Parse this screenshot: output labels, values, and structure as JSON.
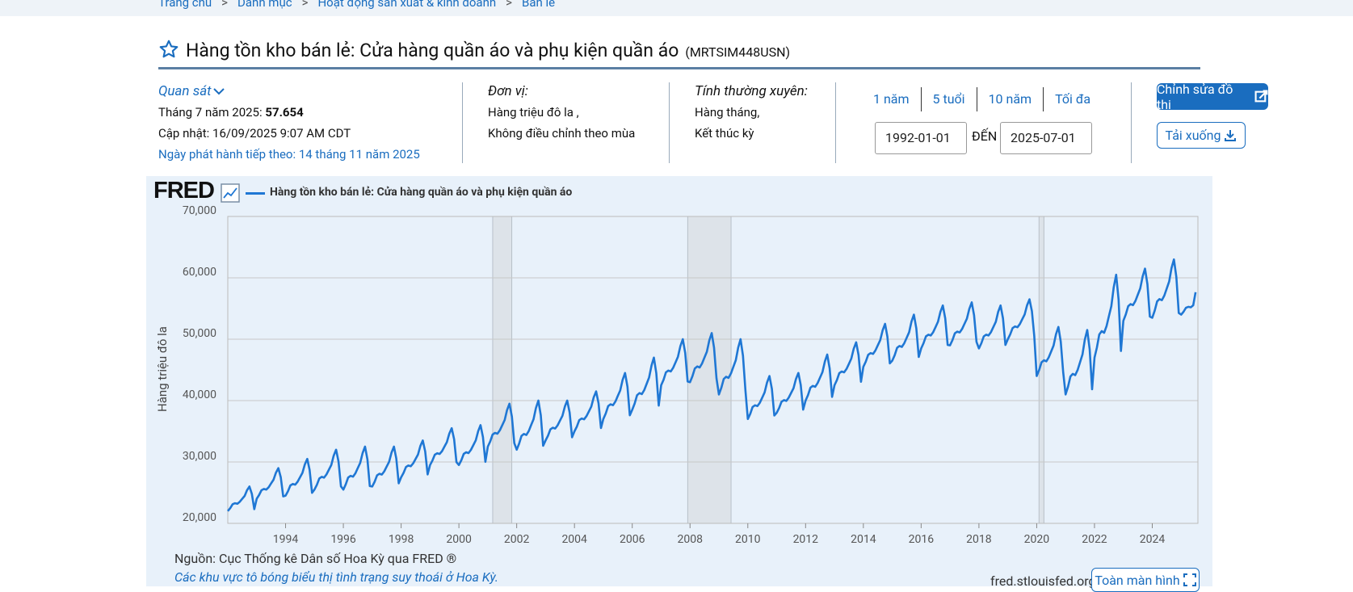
{
  "breadcrumb": [
    {
      "label": "Trang chủ"
    },
    {
      "label": "Danh mục"
    },
    {
      "label": "Hoạt động sản xuất & kinh doanh"
    },
    {
      "label": "Bán lẻ"
    }
  ],
  "breadcrumb_sep": ">",
  "title": "Hàng tồn kho bán lẻ: Cửa hàng quần áo và phụ kiện quần áo",
  "series_id": "(MRTSIM448USN)",
  "observation": {
    "label": "Quan sát",
    "period_label": "Tháng 7 năm 2025:",
    "value": "57.654",
    "updated": "Cập nhật: 16/09/2025 9:07 AM CDT",
    "next_release": "Ngày phát hành tiếp theo: 14 tháng 11 năm 2025"
  },
  "units": {
    "label": "Đơn vị:",
    "line1": "Hàng triệu đô la ,",
    "line2": "Không điều chỉnh theo mùa"
  },
  "frequency": {
    "label": "Tính thường xuyên:",
    "line1": "Hàng tháng,",
    "line2": "Kết thúc kỳ"
  },
  "range_tabs": [
    "1 năm",
    "5 tuổi",
    "10 năm",
    "Tối đa"
  ],
  "date_from": "1992-01-01",
  "date_to_label": "ĐẾN",
  "date_to": "2025-07-01",
  "buttons": {
    "edit": "Chỉnh sửa đồ thị",
    "download": "Tải xuống",
    "fullscreen": "Toàn màn hình"
  },
  "chart_header": {
    "logo": "FRED",
    "legend": "Hàng tồn kho bán lẻ: Cửa hàng quần áo và phụ kiện quần áo"
  },
  "footer": {
    "source": "Nguồn: Cục Thống kê Dân số Hoa Kỳ qua FRED ®",
    "shade_note": "Các khu vực tô bóng biểu thị tình trạng suy thoái ở Hoa Kỳ.",
    "url": "fred.stlouisfed.org"
  },
  "colors": {
    "accent": "#1a6dbf",
    "series": "#1f77d4",
    "panel": "#e8f1fa",
    "recession": "#dde3e9"
  },
  "chart_data": {
    "type": "line",
    "title": "Hàng tồn kho bán lẻ: Cửa hàng quần áo và phụ kiện quần áo",
    "xlabel": "",
    "ylabel": "Hàng triệu đô la",
    "ylim": [
      20000,
      70000
    ],
    "xlim": [
      1992.0,
      2025.58
    ],
    "yticks": [
      20000,
      30000,
      40000,
      50000,
      60000,
      70000
    ],
    "ytick_labels": [
      "20,000",
      "30,000",
      "40,000",
      "50,000",
      "60,000",
      "70,000"
    ],
    "xticks": [
      1994,
      1996,
      1998,
      2000,
      2002,
      2004,
      2006,
      2008,
      2010,
      2012,
      2014,
      2016,
      2018,
      2020,
      2022,
      2024
    ],
    "xtick_labels": [
      "1994",
      "1996",
      "1998",
      "2000",
      "2002",
      "2004",
      "2006",
      "2008",
      "2010",
      "2012",
      "2014",
      "2016",
      "2018",
      "2020",
      "2022",
      "2024"
    ],
    "recessions": [
      [
        2001.17,
        2001.83
      ],
      [
        2007.92,
        2009.42
      ],
      [
        2020.08,
        2020.25
      ]
    ],
    "series": [
      {
        "name": "MRTSIM448USN",
        "annual_points": [
          {
            "year": 1992,
            "low": 22000,
            "high": 26000
          },
          {
            "year": 1993,
            "low": 24000,
            "high": 29000
          },
          {
            "year": 1994,
            "low": 24500,
            "high": 30500
          },
          {
            "year": 1995,
            "low": 25500,
            "high": 32000
          },
          {
            "year": 1996,
            "low": 25500,
            "high": 32500
          },
          {
            "year": 1997,
            "low": 26000,
            "high": 32500
          },
          {
            "year": 1998,
            "low": 27500,
            "high": 33500
          },
          {
            "year": 1999,
            "low": 29500,
            "high": 35500
          },
          {
            "year": 2000,
            "low": 29500,
            "high": 36000
          },
          {
            "year": 2001,
            "low": 32500,
            "high": 39500
          },
          {
            "year": 2002,
            "low": 32000,
            "high": 40000
          },
          {
            "year": 2003,
            "low": 33500,
            "high": 40000
          },
          {
            "year": 2004,
            "low": 35000,
            "high": 41500
          },
          {
            "year": 2005,
            "low": 37000,
            "high": 44500
          },
          {
            "year": 2006,
            "low": 38500,
            "high": 47000
          },
          {
            "year": 2007,
            "low": 42500,
            "high": 50000
          },
          {
            "year": 2008,
            "low": 43000,
            "high": 51000
          },
          {
            "year": 2009,
            "low": 41000,
            "high": 50000
          },
          {
            "year": 2010,
            "low": 37000,
            "high": 44000
          },
          {
            "year": 2011,
            "low": 38000,
            "high": 44500
          },
          {
            "year": 2012,
            "low": 40000,
            "high": 47500
          },
          {
            "year": 2013,
            "low": 42500,
            "high": 49500
          },
          {
            "year": 2014,
            "low": 45500,
            "high": 52500
          },
          {
            "year": 2015,
            "low": 46500,
            "high": 54000
          },
          {
            "year": 2016,
            "low": 48500,
            "high": 55500
          },
          {
            "year": 2017,
            "low": 49000,
            "high": 56000
          },
          {
            "year": 2018,
            "low": 48500,
            "high": 55500
          },
          {
            "year": 2019,
            "low": 50000,
            "high": 56500
          },
          {
            "year": 2020,
            "low": 44000,
            "high": 52000
          },
          {
            "year": 2021,
            "low": 41000,
            "high": 51500
          },
          {
            "year": 2022,
            "low": 47000,
            "high": 60500
          },
          {
            "year": 2023,
            "low": 53000,
            "high": 61500
          },
          {
            "year": 2024,
            "low": 53500,
            "high": 63000
          },
          {
            "year": 2025,
            "low": 54000,
            "high": 58000
          }
        ],
        "last_value": 57654
      }
    ]
  }
}
